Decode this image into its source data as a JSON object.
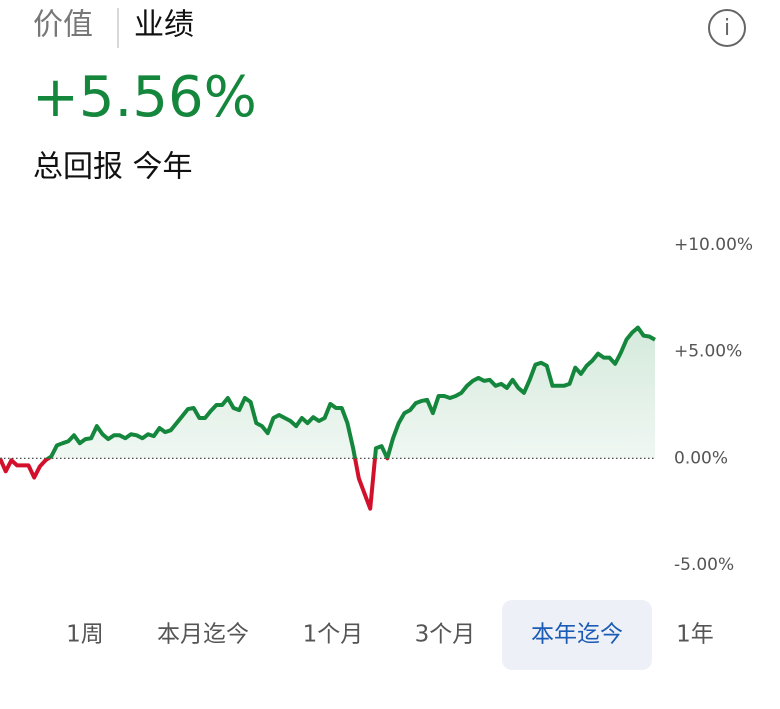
{
  "tabs_top": [
    "价值",
    "业绩"
  ],
  "info_icon": "i",
  "headline": {
    "value": "+5.56%",
    "caption": "总回报 今年"
  },
  "chart_data": {
    "type": "line",
    "series": [
      {
        "color": "#15873d",
        "negative_color": "#d3102c",
        "values": [
          0,
          -0.61,
          -0.09,
          -0.33,
          -0.33,
          -0.33,
          -0.9,
          -0.38,
          -0.09,
          0.09,
          0.61,
          0.71,
          0.8,
          1.08,
          0.71,
          0.9,
          0.94,
          1.51,
          1.13,
          0.9,
          1.08,
          1.08,
          0.94,
          1.13,
          1.08,
          0.94,
          1.13,
          1.04,
          1.42,
          1.23,
          1.32,
          1.65,
          1.98,
          2.31,
          2.36,
          1.89,
          1.89,
          2.22,
          2.5,
          2.5,
          2.83,
          2.36,
          2.26,
          2.83,
          2.64,
          1.65,
          1.51,
          1.18,
          1.89,
          2.03,
          1.89,
          1.75,
          1.51,
          1.89,
          1.65,
          1.93,
          1.75,
          1.89,
          2.55,
          2.36,
          2.36,
          1.65,
          0.47,
          -0.94,
          -1.65,
          -2.36,
          0.47,
          0.57,
          0,
          0.94,
          1.65,
          2.12,
          2.26,
          2.59,
          2.69,
          2.74,
          2.12,
          2.92,
          2.92,
          2.83,
          2.92,
          3.07,
          3.4,
          3.63,
          3.77,
          3.63,
          3.68,
          3.4,
          3.49,
          3.3,
          3.68,
          3.3,
          3.07,
          3.68,
          4.39,
          4.48,
          4.34,
          3.4,
          3.4,
          3.4,
          3.49,
          4.25,
          3.96,
          4.34,
          4.58,
          4.91,
          4.72,
          4.72,
          4.43,
          4.95,
          5.57,
          5.9,
          6.13,
          5.75,
          5.71,
          5.56
        ]
      }
    ],
    "ylim": [
      -5,
      10
    ],
    "yticks": [
      {
        "value": 10,
        "label": "+10.00%"
      },
      {
        "value": 5,
        "label": "+5.00%"
      },
      {
        "value": 0,
        "label": "0.00%"
      },
      {
        "value": -5,
        "label": "-5.00%"
      }
    ],
    "zero_line": true
  },
  "range_tabs": [
    "1周",
    "本月迄今",
    "1个月",
    "3个月",
    "本年迄今",
    "1年"
  ],
  "selected_range": 4
}
